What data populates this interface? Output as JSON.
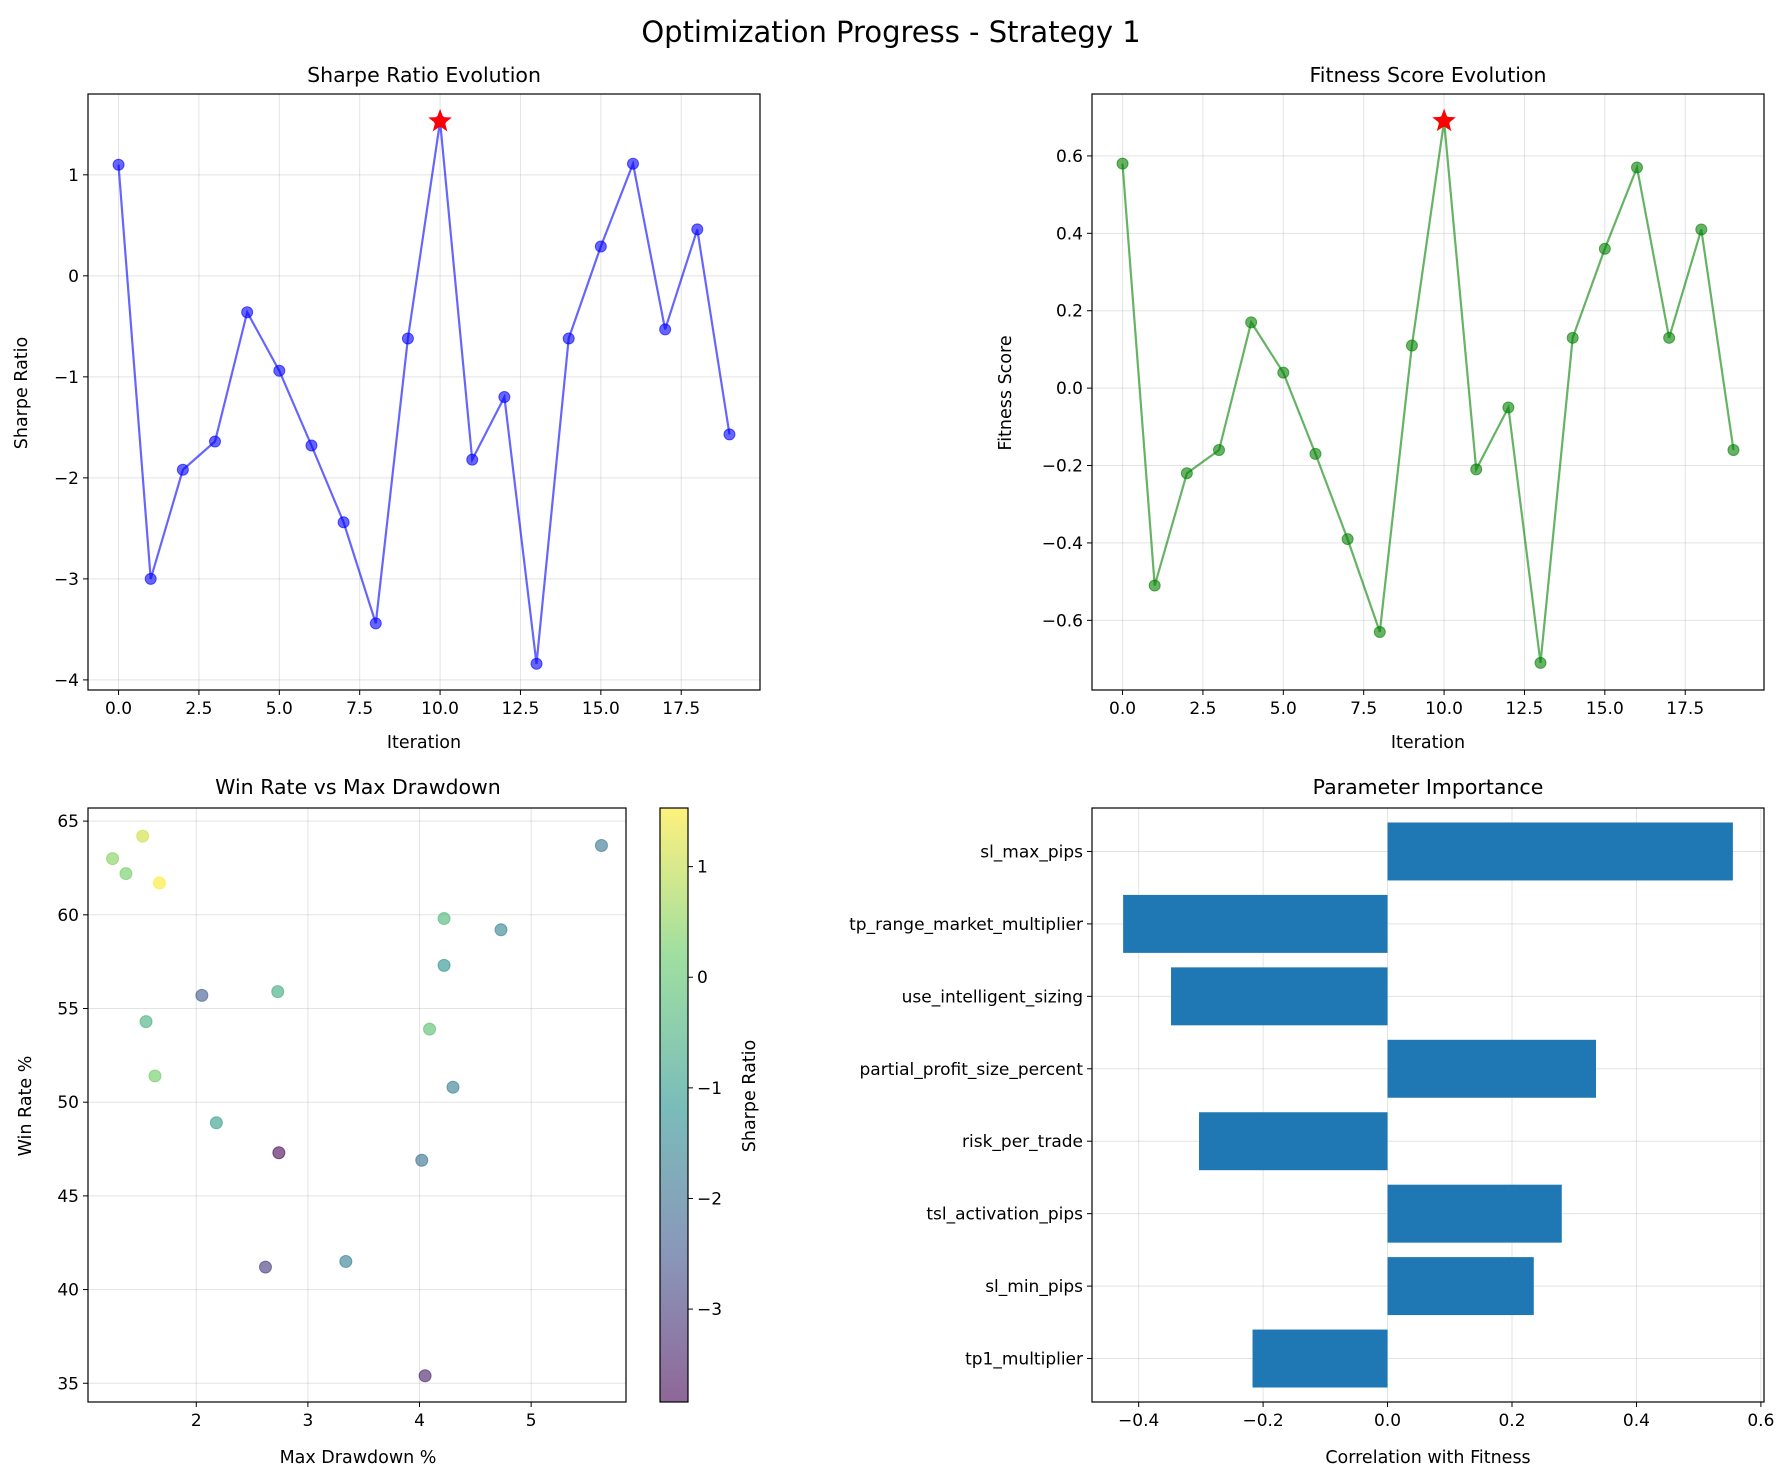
{
  "figure": {
    "title": "Optimization Progress - Strategy 1"
  },
  "colors": {
    "sharpe": "#0000ff",
    "fitness": "#008000",
    "best": "#ff0000",
    "bars": "#1f77b4"
  },
  "chart_data": [
    {
      "type": "line",
      "title": "Sharpe Ratio Evolution",
      "xlabel": "Iteration",
      "ylabel": "Sharpe Ratio",
      "xlim": [
        -0.95,
        19.95
      ],
      "ylim": [
        -4.1,
        1.8
      ],
      "xticks": [
        0,
        2.5,
        5,
        7.5,
        10,
        12.5,
        15,
        17.5
      ],
      "xtick_labels": [
        "0.0",
        "2.5",
        "5.0",
        "7.5",
        "10.0",
        "12.5",
        "15.0",
        "17.5"
      ],
      "yticks": [
        -4,
        -3,
        -2,
        -1,
        0,
        1
      ],
      "ytick_labels": [
        "−4",
        "−3",
        "−2",
        "−1",
        "0",
        "1"
      ],
      "grid": true,
      "x": [
        0,
        1,
        2,
        3,
        4,
        5,
        6,
        7,
        8,
        9,
        10,
        11,
        12,
        13,
        14,
        15,
        16,
        17,
        18,
        19
      ],
      "y": [
        1.1,
        -3.0,
        -1.92,
        -1.64,
        -0.36,
        -0.94,
        -1.68,
        -2.44,
        -3.44,
        -0.62,
        1.53,
        -1.82,
        -1.2,
        -3.84,
        -0.62,
        0.29,
        1.11,
        -0.53,
        0.46,
        -1.57
      ],
      "best": {
        "x": 10,
        "y": 1.53
      }
    },
    {
      "type": "line",
      "title": "Fitness Score Evolution",
      "xlabel": "Iteration",
      "ylabel": "Fitness Score",
      "xlim": [
        -0.95,
        19.95
      ],
      "ylim": [
        -0.78,
        0.76
      ],
      "xticks": [
        0,
        2.5,
        5,
        7.5,
        10,
        12.5,
        15,
        17.5
      ],
      "xtick_labels": [
        "0.0",
        "2.5",
        "5.0",
        "7.5",
        "10.0",
        "12.5",
        "15.0",
        "17.5"
      ],
      "yticks": [
        -0.6,
        -0.4,
        -0.2,
        0.0,
        0.2,
        0.4,
        0.6
      ],
      "ytick_labels": [
        "−0.6",
        "−0.4",
        "−0.2",
        "0.0",
        "0.2",
        "0.4",
        "0.6"
      ],
      "grid": true,
      "x": [
        0,
        1,
        2,
        3,
        4,
        5,
        6,
        7,
        8,
        9,
        10,
        11,
        12,
        13,
        14,
        15,
        16,
        17,
        18,
        19
      ],
      "y": [
        0.58,
        -0.51,
        -0.22,
        -0.16,
        0.17,
        0.04,
        -0.17,
        -0.39,
        -0.63,
        0.11,
        0.69,
        -0.21,
        -0.05,
        -0.71,
        0.13,
        0.36,
        0.57,
        0.13,
        0.41,
        -0.16
      ],
      "best": {
        "x": 10,
        "y": 0.69
      }
    },
    {
      "type": "scatter",
      "title": "Win Rate vs Max Drawdown",
      "xlabel": "Max Drawdown %",
      "ylabel": "Win Rate %",
      "xlim": [
        1.03,
        5.85
      ],
      "ylim": [
        34.0,
        65.7
      ],
      "xticks": [
        2,
        3,
        4,
        5
      ],
      "xtick_labels": [
        "2",
        "3",
        "4",
        "5"
      ],
      "yticks": [
        35,
        40,
        45,
        50,
        55,
        60,
        65
      ],
      "ytick_labels": [
        "35",
        "40",
        "45",
        "50",
        "55",
        "60",
        "65"
      ],
      "grid": true,
      "colorbar": {
        "label": "Sharpe Ratio",
        "range": [
          -3.84,
          1.53
        ],
        "ticks": [
          -3,
          -2,
          -1,
          0,
          1
        ],
        "tick_labels": [
          "−3",
          "−2",
          "−1",
          "0",
          "1"
        ]
      },
      "points": [
        {
          "x": 1.25,
          "y": 63.0,
          "c": 0.46
        },
        {
          "x": 1.52,
          "y": 64.2,
          "c": 1.11
        },
        {
          "x": 1.37,
          "y": 62.2,
          "c": 0.29
        },
        {
          "x": 1.67,
          "y": 61.7,
          "c": 1.53
        },
        {
          "x": 5.63,
          "y": 63.7,
          "c": -1.82
        },
        {
          "x": 4.22,
          "y": 59.8,
          "c": -0.36
        },
        {
          "x": 4.73,
          "y": 59.2,
          "c": -1.57
        },
        {
          "x": 4.22,
          "y": 57.3,
          "c": -1.2
        },
        {
          "x": 2.73,
          "y": 55.9,
          "c": -0.62
        },
        {
          "x": 2.05,
          "y": 55.7,
          "c": -2.44
        },
        {
          "x": 1.55,
          "y": 54.3,
          "c": -0.53
        },
        {
          "x": 4.09,
          "y": 53.9,
          "c": -0.1
        },
        {
          "x": 1.63,
          "y": 51.4,
          "c": 0.25
        },
        {
          "x": 4.3,
          "y": 50.8,
          "c": -1.68
        },
        {
          "x": 2.18,
          "y": 48.9,
          "c": -0.94
        },
        {
          "x": 2.74,
          "y": 47.3,
          "c": -3.84
        },
        {
          "x": 4.02,
          "y": 46.9,
          "c": -1.92
        },
        {
          "x": 3.34,
          "y": 41.5,
          "c": -1.64
        },
        {
          "x": 2.62,
          "y": 41.2,
          "c": -3.0
        },
        {
          "x": 4.05,
          "y": 35.4,
          "c": -3.44
        }
      ]
    },
    {
      "type": "bar",
      "orientation": "horizontal",
      "title": "Parameter Importance",
      "xlabel": "Correlation with Fitness",
      "ylabel": "",
      "xlim": [
        -0.475,
        0.605
      ],
      "xticks": [
        -0.4,
        -0.2,
        0.0,
        0.2,
        0.4,
        0.6
      ],
      "xtick_labels": [
        "−0.4",
        "−0.2",
        "0.0",
        "0.2",
        "0.4",
        "0.6"
      ],
      "grid": true,
      "categories": [
        "sl_max_pips",
        "tp_range_market_multiplier",
        "use_intelligent_sizing",
        "partial_profit_size_percent",
        "risk_per_trade",
        "tsl_activation_pips",
        "sl_min_pips",
        "tp1_multiplier"
      ],
      "values": [
        0.555,
        -0.425,
        -0.348,
        0.335,
        -0.303,
        0.28,
        0.235,
        -0.217
      ]
    }
  ]
}
